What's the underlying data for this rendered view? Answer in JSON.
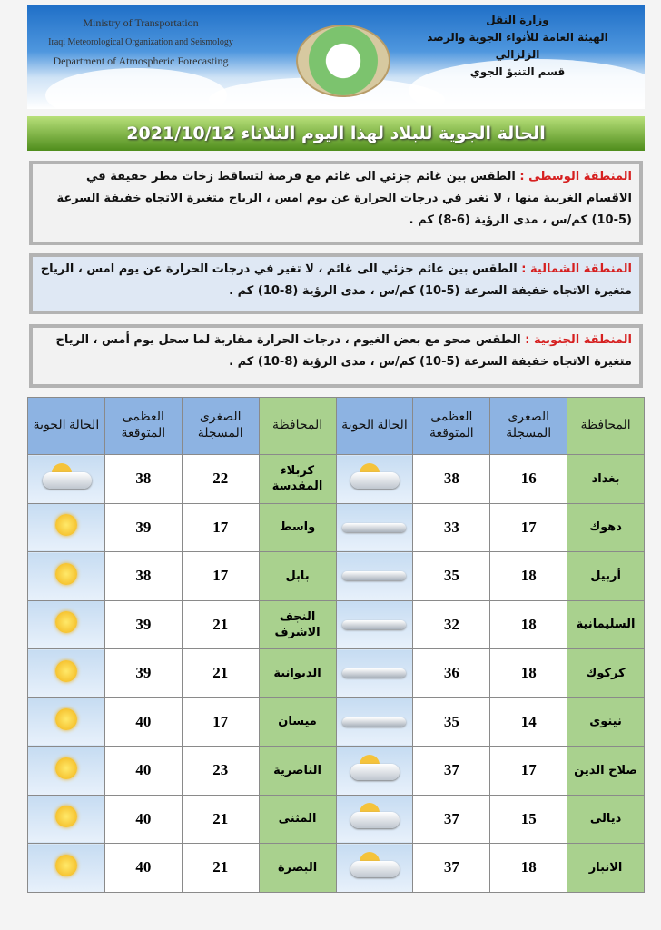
{
  "header": {
    "en_lines": [
      "Ministry of Transportation",
      "Iraqi Meteorological Organization and Seismology",
      "Department of Atmospheric Forecasting"
    ],
    "ar_lines": [
      "وزارة النقل",
      "الهيئة العامة للأنواء الجوية والرصد الزلزالي",
      "قسم التنبؤ الجوي"
    ]
  },
  "title": "الحالة الجوية للبلاد لهذا اليوم  الثلاثاء 2021/10/12",
  "regions": [
    {
      "label": "المنطقة الوسطى :",
      "text": "الطقس بين غائم جزئي الى غائم مع فرصة لتساقط زخات مطر خفيفة في الاقسام الغربية منها ، لا تغير في درجات الحرارة عن يوم امس ، الرياح متغيرة الاتجاه خفيفة السرعة (5-10) كم/س ، مدى الرؤية (6-8) كم ."
    },
    {
      "label": "المنطقة الشمالية :",
      "text": "الطقس بين غائم جزئي الى غائم ، لا تغير في درجات الحرارة عن يوم امس ، الرياح متغيرة الاتجاه خفيفة السرعة (5-10) كم/س ، مدى الرؤية (8-10) كم ."
    },
    {
      "label": "المنطقة الجنوبية :",
      "text": "الطقس صحو مع بعض الغيوم ، درجات الحرارة مقاربة لما سجل يوم أمس ، الرياح متغيرة الاتجاه خفيفة السرعة (5-10) كم/س ، مدى الرؤية (8-10) كم ."
    }
  ],
  "table": {
    "headers": [
      "المحافظة",
      "الصغرى المسجلة",
      "العظمى المتوقعة",
      "الحالة الجوية",
      "المحافظة",
      "الصغرى المسجلة",
      "العظمى المتوقعة",
      "الحالة الجوية"
    ],
    "rows": [
      [
        {
          "p": "بغداد",
          "min": "16",
          "max": "38",
          "icon": "partly-cloudy"
        },
        {
          "p": "كربلاء المقدسة",
          "min": "22",
          "max": "38",
          "icon": "partly-cloudy"
        }
      ],
      [
        {
          "p": "دهوك",
          "min": "17",
          "max": "33",
          "icon": "haze"
        },
        {
          "p": "واسط",
          "min": "17",
          "max": "39",
          "icon": "sunny"
        }
      ],
      [
        {
          "p": "أربيل",
          "min": "18",
          "max": "35",
          "icon": "haze"
        },
        {
          "p": "بابل",
          "min": "17",
          "max": "38",
          "icon": "sunny"
        }
      ],
      [
        {
          "p": "السليمانية",
          "min": "18",
          "max": "32",
          "icon": "haze"
        },
        {
          "p": "النجف الاشرف",
          "min": "21",
          "max": "39",
          "icon": "sunny"
        }
      ],
      [
        {
          "p": "كركوك",
          "min": "18",
          "max": "36",
          "icon": "haze"
        },
        {
          "p": "الديوانية",
          "min": "21",
          "max": "39",
          "icon": "sunny"
        }
      ],
      [
        {
          "p": "نينوى",
          "min": "14",
          "max": "35",
          "icon": "haze"
        },
        {
          "p": "ميسان",
          "min": "17",
          "max": "40",
          "icon": "sunny"
        }
      ],
      [
        {
          "p": "صلاح الدين",
          "min": "17",
          "max": "37",
          "icon": "partly-cloudy"
        },
        {
          "p": "الناصرية",
          "min": "23",
          "max": "40",
          "icon": "sunny"
        }
      ],
      [
        {
          "p": "ديالى",
          "min": "15",
          "max": "37",
          "icon": "partly-cloudy"
        },
        {
          "p": "المثنى",
          "min": "21",
          "max": "40",
          "icon": "sunny"
        }
      ],
      [
        {
          "p": "الانبار",
          "min": "18",
          "max": "37",
          "icon": "partly-cloudy"
        },
        {
          "p": "البصرة",
          "min": "21",
          "max": "40",
          "icon": "sunny"
        }
      ]
    ]
  }
}
